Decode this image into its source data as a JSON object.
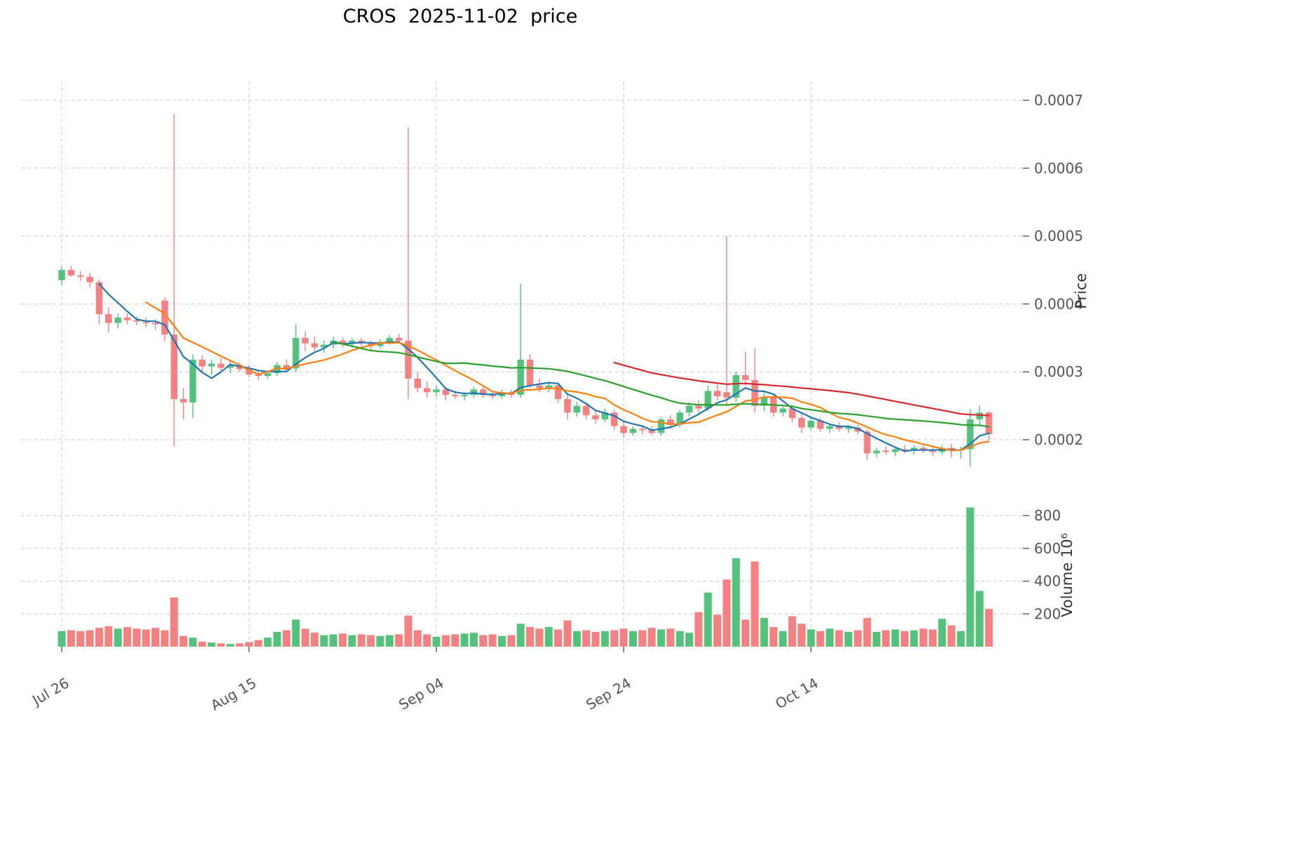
{
  "title": "CROS  2025-11-02  price",
  "chart_data": {
    "type": "candlestick_with_volume",
    "symbol": "CROS",
    "as_of_date": "2025-11-02",
    "frequency": "daily",
    "price_unit": 0.0001,
    "ohlc_format": "[open, high, low, close] multiplied by price_unit gives price",
    "ohlc": [
      [
        4.35,
        4.55,
        4.28,
        4.5
      ],
      [
        4.5,
        4.56,
        4.4,
        4.42
      ],
      [
        4.42,
        4.48,
        4.34,
        4.4
      ],
      [
        4.4,
        4.45,
        4.24,
        4.32
      ],
      [
        4.32,
        4.36,
        3.7,
        3.85
      ],
      [
        3.85,
        3.95,
        3.58,
        3.72
      ],
      [
        3.72,
        3.86,
        3.64,
        3.8
      ],
      [
        3.8,
        3.86,
        3.7,
        3.76
      ],
      [
        3.76,
        3.82,
        3.68,
        3.74
      ],
      [
        3.74,
        3.8,
        3.66,
        3.72
      ],
      [
        3.72,
        3.78,
        3.62,
        3.7
      ],
      [
        4.05,
        4.1,
        3.45,
        3.55
      ],
      [
        3.55,
        6.8,
        1.9,
        2.6
      ],
      [
        2.6,
        2.76,
        2.3,
        2.55
      ],
      [
        2.55,
        3.26,
        2.32,
        3.18
      ],
      [
        3.18,
        3.24,
        3.0,
        3.08
      ],
      [
        3.08,
        3.18,
        2.96,
        3.12
      ],
      [
        3.12,
        3.2,
        3.02,
        3.06
      ],
      [
        3.06,
        3.16,
        2.98,
        3.1
      ],
      [
        3.1,
        3.14,
        3.0,
        3.04
      ],
      [
        3.04,
        3.1,
        2.92,
        2.96
      ],
      [
        2.96,
        3.02,
        2.88,
        2.94
      ],
      [
        2.94,
        3.02,
        2.9,
        2.98
      ],
      [
        2.98,
        3.15,
        2.94,
        3.1
      ],
      [
        3.1,
        3.18,
        3.0,
        3.05
      ],
      [
        3.05,
        3.7,
        3.0,
        3.5
      ],
      [
        3.5,
        3.6,
        3.3,
        3.42
      ],
      [
        3.42,
        3.52,
        3.28,
        3.36
      ],
      [
        3.36,
        3.46,
        3.28,
        3.4
      ],
      [
        3.4,
        3.52,
        3.34,
        3.46
      ],
      [
        3.46,
        3.5,
        3.36,
        3.42
      ],
      [
        3.42,
        3.5,
        3.36,
        3.46
      ],
      [
        3.46,
        3.5,
        3.38,
        3.42
      ],
      [
        3.42,
        3.46,
        3.32,
        3.38
      ],
      [
        3.38,
        3.48,
        3.34,
        3.44
      ],
      [
        3.44,
        3.54,
        3.4,
        3.5
      ],
      [
        3.5,
        3.56,
        3.42,
        3.46
      ],
      [
        3.46,
        6.6,
        2.6,
        2.9
      ],
      [
        2.9,
        3.0,
        2.7,
        2.76
      ],
      [
        2.76,
        2.86,
        2.62,
        2.7
      ],
      [
        2.7,
        2.8,
        2.64,
        2.74
      ],
      [
        2.74,
        2.78,
        2.58,
        2.66
      ],
      [
        2.66,
        2.72,
        2.6,
        2.64
      ],
      [
        2.64,
        2.7,
        2.58,
        2.66
      ],
      [
        2.66,
        2.78,
        2.62,
        2.74
      ],
      [
        2.74,
        2.78,
        2.62,
        2.66
      ],
      [
        2.66,
        2.72,
        2.6,
        2.64
      ],
      [
        2.64,
        2.74,
        2.6,
        2.7
      ],
      [
        2.7,
        2.74,
        2.62,
        2.66
      ],
      [
        2.66,
        4.3,
        2.62,
        3.18
      ],
      [
        3.18,
        3.26,
        2.76,
        2.8
      ],
      [
        2.8,
        2.9,
        2.7,
        2.76
      ],
      [
        2.76,
        2.86,
        2.7,
        2.8
      ],
      [
        2.8,
        2.84,
        2.54,
        2.6
      ],
      [
        2.6,
        2.66,
        2.3,
        2.4
      ],
      [
        2.4,
        2.56,
        2.34,
        2.5
      ],
      [
        2.5,
        2.54,
        2.3,
        2.36
      ],
      [
        2.36,
        2.42,
        2.24,
        2.3
      ],
      [
        2.3,
        2.46,
        2.26,
        2.4
      ],
      [
        2.4,
        2.44,
        2.14,
        2.2
      ],
      [
        2.2,
        2.26,
        2.04,
        2.1
      ],
      [
        2.1,
        2.2,
        2.06,
        2.16
      ],
      [
        2.16,
        2.22,
        2.08,
        2.14
      ],
      [
        2.14,
        2.2,
        2.06,
        2.1
      ],
      [
        2.1,
        2.34,
        2.06,
        2.3
      ],
      [
        2.3,
        2.36,
        2.16,
        2.22
      ],
      [
        2.22,
        2.44,
        2.18,
        2.4
      ],
      [
        2.4,
        2.56,
        2.34,
        2.5
      ],
      [
        2.5,
        2.58,
        2.4,
        2.46
      ],
      [
        2.46,
        2.8,
        2.42,
        2.72
      ],
      [
        2.72,
        2.82,
        2.58,
        2.64
      ],
      [
        2.7,
        5.0,
        2.5,
        2.62
      ],
      [
        2.62,
        3.0,
        2.56,
        2.95
      ],
      [
        2.95,
        3.3,
        2.8,
        2.88
      ],
      [
        2.88,
        3.35,
        2.4,
        2.5
      ],
      [
        2.5,
        2.7,
        2.42,
        2.62
      ],
      [
        2.62,
        2.66,
        2.34,
        2.4
      ],
      [
        2.4,
        2.52,
        2.34,
        2.46
      ],
      [
        2.46,
        2.5,
        2.26,
        2.32
      ],
      [
        2.32,
        2.38,
        2.1,
        2.18
      ],
      [
        2.18,
        2.32,
        2.14,
        2.28
      ],
      [
        2.28,
        2.32,
        2.12,
        2.16
      ],
      [
        2.16,
        2.24,
        2.1,
        2.2
      ],
      [
        2.2,
        2.26,
        2.12,
        2.16
      ],
      [
        2.16,
        2.22,
        2.1,
        2.18
      ],
      [
        2.18,
        2.22,
        2.08,
        2.12
      ],
      [
        2.12,
        2.16,
        1.7,
        1.8
      ],
      [
        1.8,
        1.88,
        1.74,
        1.84
      ],
      [
        1.84,
        1.9,
        1.78,
        1.82
      ],
      [
        1.82,
        1.9,
        1.76,
        1.86
      ],
      [
        1.86,
        1.92,
        1.8,
        1.84
      ],
      [
        1.84,
        1.92,
        1.78,
        1.88
      ],
      [
        1.88,
        1.92,
        1.8,
        1.84
      ],
      [
        1.84,
        1.9,
        1.76,
        1.82
      ],
      [
        1.82,
        1.92,
        1.78,
        1.88
      ],
      [
        1.88,
        1.94,
        1.74,
        1.84
      ],
      [
        1.84,
        1.9,
        1.72,
        1.86
      ],
      [
        1.86,
        2.45,
        1.6,
        2.3
      ],
      [
        2.3,
        2.5,
        2.2,
        2.4
      ],
      [
        2.4,
        2.42,
        2.0,
        2.08
      ]
    ],
    "volume_millions": [
      95,
      100,
      95,
      100,
      115,
      125,
      110,
      120,
      110,
      105,
      115,
      100,
      300,
      65,
      55,
      30,
      25,
      20,
      16,
      20,
      28,
      40,
      55,
      90,
      100,
      165,
      110,
      85,
      70,
      75,
      80,
      70,
      75,
      70,
      65,
      70,
      75,
      190,
      100,
      75,
      60,
      70,
      75,
      80,
      85,
      70,
      75,
      65,
      70,
      140,
      120,
      110,
      120,
      105,
      160,
      95,
      100,
      90,
      95,
      100,
      110,
      95,
      100,
      115,
      105,
      110,
      95,
      85,
      210,
      330,
      195,
      410,
      540,
      165,
      520,
      175,
      120,
      95,
      185,
      140,
      105,
      95,
      110,
      100,
      90,
      100,
      175,
      90,
      100,
      105,
      95,
      100,
      110,
      105,
      170,
      130,
      95,
      850,
      340,
      230
    ],
    "x_ticks": [
      {
        "index": 0,
        "label": "Jul 26"
      },
      {
        "index": 20,
        "label": "Aug 15"
      },
      {
        "index": 40,
        "label": "Sep 04"
      },
      {
        "index": 60,
        "label": "Sep 24"
      },
      {
        "index": 80,
        "label": "Oct 14"
      }
    ],
    "price_axis": {
      "label": "Price",
      "ticks": [
        0.0002,
        0.0003,
        0.0004,
        0.0005,
        0.0006,
        0.0007
      ],
      "tick_labels": [
        "0.0002",
        "0.0003",
        "0.0004",
        "0.0005",
        "0.0006",
        "0.0007"
      ],
      "range": [
        0.000125,
        0.000725
      ],
      "position": "right"
    },
    "volume_axis": {
      "label": "Volume  10⁶",
      "ticks": [
        200,
        400,
        600,
        800
      ],
      "tick_labels": [
        "200",
        "400",
        "600",
        "800"
      ],
      "range": [
        0,
        940
      ],
      "position": "right"
    },
    "moving_averages": [
      {
        "name": "MA5",
        "period": 5,
        "color": "#1f77b4"
      },
      {
        "name": "MA10",
        "period": 10,
        "color": "#ff7f0e"
      },
      {
        "name": "MA30",
        "period": 30,
        "color": "#2ca02c"
      },
      {
        "name": "MA60",
        "period": 60,
        "color": "#d62728"
      }
    ],
    "colors": {
      "up": "#54c27d",
      "down": "#f38181",
      "grid": "#c9c9c9",
      "tick_text": "#555555",
      "axis_label_text": "#333333",
      "background": "#ffffff"
    },
    "grid": "dashed",
    "legend": "none"
  }
}
